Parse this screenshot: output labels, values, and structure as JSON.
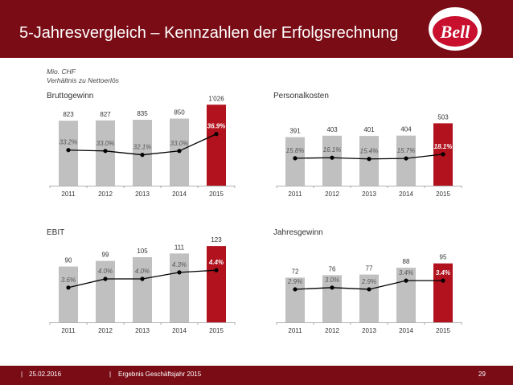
{
  "page": {
    "title": "5-Jahresvergleich – Kennzahlen der Erfolgsrechnung",
    "subtitle_line1": "Mio. CHF",
    "subtitle_line2": "Verhältnis zu Nettoerlös",
    "logo_text": "Bell",
    "footer_date": "25.02.2016",
    "footer_doc": "Ergebnis Geschäftsjahr 2015",
    "footer_sep": "|",
    "page_number": "29"
  },
  "colors": {
    "brand": "#7a0c16",
    "bar": "#c0c0c0",
    "highlight": "#b1121d",
    "line": "#000000"
  },
  "chart_data": [
    {
      "type": "bar",
      "title": "Bruttogewinn",
      "categories": [
        "2011",
        "2012",
        "2013",
        "2014",
        "2015"
      ],
      "values": [
        823,
        827,
        835,
        850,
        1026
      ],
      "value_labels": [
        "823",
        "827",
        "835",
        "850",
        "1'026"
      ],
      "ylim": [
        0,
        1100
      ],
      "ratio_series": {
        "name": "Verhältnis zu Nettoerlös",
        "values": [
          33.2,
          33.0,
          32.1,
          33.0,
          36.9
        ],
        "labels": [
          "33.2%",
          "33.0%",
          "32.1%",
          "33.0%",
          "36.9%"
        ],
        "ylim": [
          25,
          45
        ]
      },
      "highlight_index": 4
    },
    {
      "type": "bar",
      "title": "Personalkosten",
      "categories": [
        "2011",
        "2012",
        "2013",
        "2014",
        "2015"
      ],
      "values": [
        391,
        403,
        401,
        404,
        503
      ],
      "value_labels": [
        "391",
        "403",
        "401",
        "404",
        "503"
      ],
      "ylim": [
        0,
        700
      ],
      "ratio_series": {
        "name": "Verhältnis zu Nettoerlös",
        "values": [
          15.8,
          16.1,
          15.4,
          15.7,
          18.1
        ],
        "labels": [
          "15.8%",
          "16.1%",
          "15.4%",
          "15.7%",
          "18.1%"
        ],
        "ylim": [
          0,
          50
        ]
      },
      "highlight_index": 4
    },
    {
      "type": "bar",
      "title": "EBIT",
      "categories": [
        "2011",
        "2012",
        "2013",
        "2014",
        "2015"
      ],
      "values": [
        90,
        99,
        105,
        111,
        123
      ],
      "value_labels": [
        "90",
        "99",
        "105",
        "111",
        "123"
      ],
      "ylim": [
        0,
        140
      ],
      "ratio_series": {
        "name": "Verhältnis zu Nettoerlös",
        "values": [
          3.6,
          4.0,
          4.0,
          4.3,
          4.4
        ],
        "labels": [
          "3.6%",
          "4.0%",
          "4.0%",
          "4.3%",
          "4.4%"
        ],
        "ylim": [
          2,
          6
        ]
      },
      "highlight_index": 4
    },
    {
      "type": "bar",
      "title": "Jahresgewinn",
      "categories": [
        "2011",
        "2012",
        "2013",
        "2014",
        "2015"
      ],
      "values": [
        72,
        76,
        77,
        88,
        95
      ],
      "value_labels": [
        "72",
        "76",
        "77",
        "88",
        "95"
      ],
      "ylim": [
        0,
        140
      ],
      "ratio_series": {
        "name": "Verhältnis zu Nettoerlös",
        "values": [
          2.9,
          3.0,
          2.9,
          3.4,
          3.4
        ],
        "labels": [
          "2.9%",
          "3.0%",
          "2.9%",
          "3.4%",
          "3.4%"
        ],
        "ylim": [
          1,
          6
        ]
      },
      "highlight_index": 4
    }
  ]
}
